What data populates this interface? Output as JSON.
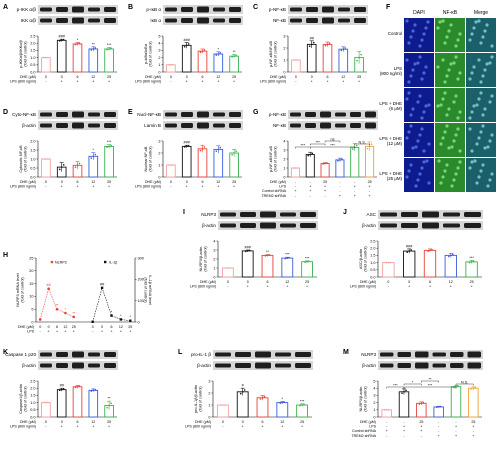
{
  "colors": [
    "#f4a0a0",
    "#111111",
    "#e8413b",
    "#3b5bdb",
    "#37b24d",
    "#f2a03d"
  ],
  "panelF": {
    "letter": "F",
    "headers": [
      "DAPI",
      "NF-κB",
      "Merge"
    ],
    "rows": [
      [
        "Control"
      ],
      [
        "LPS",
        "(800 ng/ml)"
      ],
      [
        "LPS + DHE",
        "(6 μM)"
      ],
      [
        "LPS + DHE",
        "(12 μM)"
      ],
      [
        "LPS + DHE",
        "(25 μM)"
      ]
    ]
  },
  "chart_data": [
    {
      "id": "A",
      "type": "bar",
      "blots": [
        "p-IKK α/β",
        "IKK α/β"
      ],
      "ylabel": "p-IKKα/β/IKKα/β\n(fold of control)",
      "ylim": [
        0,
        2.5
      ],
      "yticks": [
        "0.0",
        "0.5",
        "1.0",
        "1.5",
        "2.0",
        "2.5"
      ],
      "values": [
        1.0,
        2.2,
        1.95,
        1.6,
        1.6
      ],
      "errors": [
        0,
        0.08,
        0.1,
        0.15,
        0.1
      ],
      "sig": [
        "",
        "###",
        "*",
        "**",
        "***"
      ],
      "conds": [
        [
          "DHE (μM)",
          "0",
          "0",
          "6",
          "12",
          "25"
        ],
        [
          "LPS (800 ng/ml)",
          "-",
          "+",
          "+",
          "+",
          "+"
        ]
      ]
    },
    {
      "id": "B",
      "type": "bar",
      "blots": [
        "p-IκB α",
        "IκB α"
      ],
      "ylabel": "p-IκBα/IκBα\n(fold of control)",
      "ylim": [
        0,
        5
      ],
      "yticks": [
        "0",
        "1",
        "2",
        "3",
        "4",
        "5"
      ],
      "values": [
        1.0,
        3.7,
        2.9,
        2.5,
        2.2
      ],
      "errors": [
        0,
        0.4,
        0.3,
        0.3,
        0.2
      ],
      "sig": [
        "",
        "###",
        "",
        "*",
        "**"
      ],
      "conds": [
        [
          "DHE (μM)",
          "0",
          "0",
          "6",
          "12",
          "25"
        ],
        [
          "LPS (800 ng/ml)",
          "-",
          "+",
          "+",
          "+",
          "+"
        ]
      ]
    },
    {
      "id": "C",
      "type": "bar",
      "blots": [
        "p-NF-κB",
        "NF-κB"
      ],
      "ylabel": "p-NF-κB/NF-κB\n(fold of control)",
      "ylim": [
        0,
        3
      ],
      "yticks": [
        "0",
        "1",
        "2",
        "3"
      ],
      "values": [
        1.0,
        2.3,
        2.3,
        1.9,
        1.2
      ],
      "errors": [
        0,
        0.3,
        0.2,
        0.2,
        0.5
      ],
      "sig": [
        "",
        "##",
        "",
        "",
        ""
      ],
      "conds": [
        [
          "DHE (μM)",
          "0",
          "0",
          "6",
          "12",
          "25"
        ],
        [
          "LPS (800 ng/ml)",
          "-",
          "+",
          "+",
          "+",
          "+"
        ]
      ]
    },
    {
      "id": "D",
      "type": "bar",
      "blots": [
        "Cyto-NF-κB",
        "β-actin"
      ],
      "ylabel": "Cytosolic NF-κB\n(fold of control)",
      "ylim": [
        0,
        2.0
      ],
      "yticks": [
        "0.0",
        "0.5",
        "1.0",
        "1.5",
        "2.0"
      ],
      "values": [
        1.0,
        0.55,
        0.65,
        1.15,
        1.7
      ],
      "errors": [
        0,
        0.25,
        0.2,
        0.2,
        0.1
      ],
      "sig": [
        "",
        "",
        "",
        "*",
        "***"
      ],
      "conds": [
        [
          "DHE (μM)",
          "0",
          "0",
          "6",
          "12",
          "25"
        ],
        [
          "LPS (800 ng/ml)",
          "-",
          "+",
          "+",
          "+",
          "+"
        ]
      ]
    },
    {
      "id": "E",
      "type": "bar",
      "blots": [
        "Nucl-NF-κB",
        "Lamin B"
      ],
      "ylabel": "Nuclear NF-κB\n(fold of control)",
      "ylim": [
        0,
        3
      ],
      "yticks": [
        "0",
        "1",
        "2",
        "3"
      ],
      "values": [
        1.0,
        2.55,
        2.35,
        2.3,
        2.0
      ],
      "errors": [
        0,
        0.1,
        0.3,
        0.3,
        0.3
      ],
      "sig": [
        "",
        "###",
        "",
        "",
        ""
      ],
      "conds": [
        [
          "DHE (μM)",
          "0",
          "0",
          "6",
          "12",
          "25"
        ],
        [
          "LPS (800 ng/ml)",
          "-",
          "+",
          "+",
          "+",
          "+"
        ]
      ]
    },
    {
      "id": "G",
      "type": "bar",
      "blots": [
        "p-NF-κB",
        "NF-κB"
      ],
      "ylabel": "p-NF-κB/NF-κB\n(fold of control)",
      "ylim": [
        0,
        4
      ],
      "yticks": [
        "0",
        "1",
        "2",
        "3",
        "4"
      ],
      "values": [
        1.0,
        2.5,
        1.5,
        1.9,
        3.3,
        3.4
      ],
      "errors": [
        0,
        0.25,
        0.1,
        0.2,
        0.4,
        0.5
      ],
      "sig": [
        "",
        "",
        "",
        "",
        "",
        ""
      ],
      "brackets": [
        [
          0,
          1,
          "***"
        ],
        [
          1,
          2,
          "***"
        ],
        [
          2,
          3,
          "ns"
        ],
        [
          1,
          4,
          "***"
        ],
        [
          4,
          5,
          "N.S."
        ]
      ],
      "colors": [
        "#f4a0a0",
        "#111111",
        "#e8413b",
        "#3b5bdb",
        "#37b24d",
        "#f2a03d"
      ],
      "conds": [
        [
          "DHE (μM)",
          "-",
          "-",
          "25",
          "-",
          "-",
          "25"
        ],
        [
          "LPS",
          "-",
          "+",
          "+",
          "-",
          "+",
          "+"
        ],
        [
          "Control shRNA",
          "+",
          "+",
          "+",
          "-",
          "-",
          "-"
        ],
        [
          "TREM2 shRNA",
          "-",
          "-",
          "-",
          "+",
          "+",
          "+"
        ]
      ]
    },
    {
      "id": "H",
      "type": "line",
      "legend": [
        "NLRP3",
        "IL-1β"
      ],
      "ylabel": "NLRP3 mRNA level\n(fold of control)",
      "ylabel2": "IL-1β mRNA level\n(fold of control)",
      "ylim": [
        0,
        25
      ],
      "yticks": [
        "0",
        "5",
        "10",
        "15",
        "20",
        "25"
      ],
      "ylim2": [
        0,
        300
      ],
      "yticks2": [
        "0",
        "100",
        "200",
        "300"
      ],
      "nlrp3": [
        1.0,
        13.0,
        5.0,
        3.5,
        2.0
      ],
      "il1b": [
        1.0,
        160,
        30,
        12,
        6
      ],
      "sig1": [
        "",
        "##",
        "**",
        "*",
        "**"
      ],
      "sig2": [
        "",
        "##",
        "*",
        "*",
        "*"
      ],
      "conds": [
        [
          "DHE (μM)",
          "0",
          "0",
          "6",
          "12",
          "25"
        ],
        [
          "LPS",
          "-",
          "+",
          "+",
          "+",
          "+"
        ]
      ]
    },
    {
      "id": "I",
      "type": "bar",
      "blots": [
        "NLRP3",
        "β-actin"
      ],
      "ylabel": "NLRP3/β-actin\n(fold of control)",
      "ylim": [
        0,
        4
      ],
      "yticks": [
        "0",
        "1",
        "2",
        "3",
        "4"
      ],
      "values": [
        1.0,
        2.9,
        2.4,
        2.1,
        1.7
      ],
      "errors": [
        0,
        0.1,
        0.1,
        0.1,
        0.1
      ],
      "sig": [
        "",
        "###",
        "**",
        "***",
        "***"
      ],
      "conds": [
        [
          "DHE (μM)",
          "0",
          "0",
          "6",
          "12",
          "25"
        ],
        [
          "LPS (800 ng/ml)",
          "-",
          "+",
          "+",
          "+",
          "+"
        ]
      ]
    },
    {
      "id": "J",
      "type": "bar",
      "blots": [
        "ASC",
        "β-actin"
      ],
      "ylabel": "ASC/β-actin\n(fold of control)",
      "ylim": [
        0,
        2.5
      ],
      "yticks": [
        "0.0",
        "0.5",
        "1.0",
        "1.5",
        "2.0",
        "2.5"
      ],
      "values": [
        1.0,
        1.8,
        1.85,
        1.5,
        1.05
      ],
      "errors": [
        0,
        0.15,
        0.1,
        0.15,
        0.1
      ],
      "sig": [
        "",
        "###",
        "",
        "",
        "***"
      ],
      "conds": [
        [
          "DHE (μM)",
          "0",
          "0",
          "6",
          "12",
          "25"
        ],
        [
          "LPS (800 ng/ml)",
          "-",
          "+",
          "+",
          "+",
          "+"
        ]
      ]
    },
    {
      "id": "K",
      "type": "bar",
      "blots": [
        "Caspase 1 p20",
        "β-actin"
      ],
      "ylabel": "Caspase1/β-actin\n(fold of control)",
      "ylim": [
        0,
        2.5
      ],
      "yticks": [
        "0.0",
        "0.5",
        "1.0",
        "1.5",
        "2.0",
        "2.5"
      ],
      "values": [
        1.0,
        1.9,
        2.1,
        1.85,
        0.8
      ],
      "errors": [
        0,
        0.1,
        0.1,
        0.1,
        0.3
      ],
      "sig": [
        "",
        "##",
        "",
        "",
        "**"
      ],
      "conds": [
        [
          "DHE (μM)",
          "0",
          "0",
          "6",
          "12",
          "25"
        ],
        [
          "LPS (800 ng/ml)",
          "-",
          "+",
          "+",
          "+",
          "+"
        ]
      ]
    },
    {
      "id": "L",
      "type": "bar",
      "blots": [
        "pro-IL-1 β",
        "β-actin"
      ],
      "ylabel": "pro-IL-1β/β-actin\n(fold of control)",
      "ylim": [
        0,
        3
      ],
      "yticks": [
        "0",
        "1",
        "2",
        "3"
      ],
      "values": [
        1.0,
        2.1,
        1.6,
        1.2,
        1.0
      ],
      "errors": [
        0,
        0.3,
        0.2,
        0.1,
        0.1
      ],
      "sig": [
        "",
        "#",
        "",
        "*",
        "***"
      ],
      "conds": [
        [
          "DHE (μM)",
          "0",
          "0",
          "6",
          "12",
          "25"
        ],
        [
          "LPS (800 ng/ml)",
          "-",
          "+",
          "+",
          "+",
          "+"
        ]
      ]
    },
    {
      "id": "M",
      "type": "bar",
      "blots": [
        "NLRP3",
        "β-actin"
      ],
      "ylabel": "NLRP3/β-actin\n(fold of control)",
      "ylim": [
        0,
        5
      ],
      "yticks": [
        "0",
        "1",
        "2",
        "3",
        "4",
        "5"
      ],
      "values": [
        1.0,
        3.5,
        1.9,
        1.4,
        4.2,
        4.0
      ],
      "errors": [
        0,
        0.4,
        0.2,
        0.1,
        0.2,
        0.2
      ],
      "sig": [
        "",
        "",
        "",
        "",
        "",
        ""
      ],
      "brackets": [
        [
          0,
          1,
          "***"
        ],
        [
          1,
          2,
          "*"
        ],
        [
          2,
          3,
          "**"
        ],
        [
          1,
          4,
          "***"
        ],
        [
          4,
          5,
          "N.S."
        ]
      ],
      "colors": [
        "#f4a0a0",
        "#111111",
        "#e8413b",
        "#3b5bdb",
        "#37b24d",
        "#f2a03d"
      ],
      "conds": [
        [
          "DHE (μM)",
          "-",
          "-",
          "25",
          "-",
          "-",
          "25"
        ],
        [
          "LPS",
          "-",
          "+",
          "+",
          "-",
          "+",
          "+"
        ],
        [
          "Control shRNA",
          "+",
          "+",
          "+",
          "-",
          "-",
          "-"
        ],
        [
          "TREM2 shRNA",
          "-",
          "-",
          "-",
          "+",
          "+",
          "+"
        ]
      ]
    }
  ]
}
